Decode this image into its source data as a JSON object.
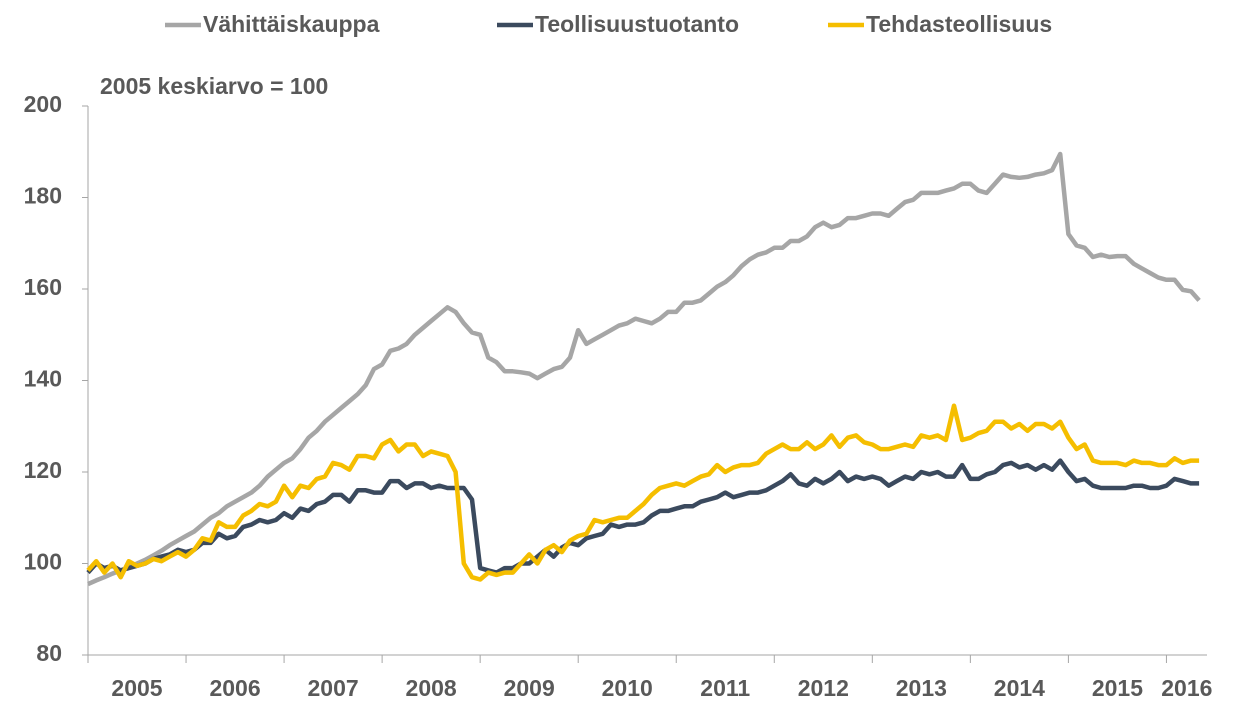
{
  "chart_data": {
    "type": "line",
    "subtitle": "2005 keskiarvo = 100",
    "categories": [
      "2005",
      null,
      null,
      null,
      null,
      null,
      null,
      null,
      null,
      null,
      null,
      null,
      "2006",
      null,
      null,
      null,
      null,
      null,
      null,
      null,
      null,
      null,
      null,
      null,
      "2007",
      null,
      null,
      null,
      null,
      null,
      null,
      null,
      null,
      null,
      null,
      null,
      "2008",
      null,
      null,
      null,
      null,
      null,
      null,
      null,
      null,
      null,
      null,
      null,
      "2009",
      null,
      null,
      null,
      null,
      null,
      null,
      null,
      null,
      null,
      null,
      null,
      "2010",
      null,
      null,
      null,
      null,
      null,
      null,
      null,
      null,
      null,
      null,
      null,
      "2011",
      null,
      null,
      null,
      null,
      null,
      null,
      null,
      null,
      null,
      null,
      null,
      "2012",
      null,
      null,
      null,
      null,
      null,
      null,
      null,
      null,
      null,
      null,
      null,
      "2013",
      null,
      null,
      null,
      null,
      null,
      null,
      null,
      null,
      null,
      null,
      null,
      "2014",
      null,
      null,
      null,
      null,
      null,
      null,
      null,
      null,
      null,
      null,
      null,
      "2015",
      null,
      null,
      null,
      null,
      null,
      null,
      null,
      null,
      null,
      null,
      null,
      "2016",
      null,
      null,
      null,
      null
    ],
    "series": [
      {
        "name": "Vähittäiskauppa",
        "color": "#a6a6a6",
        "values": [
          95.5,
          96.3,
          97,
          97.8,
          98.5,
          99.2,
          100,
          100.8,
          101.8,
          102.8,
          104,
          105,
          106,
          107,
          108.5,
          110,
          111,
          112.5,
          113.5,
          114.5,
          115.5,
          117,
          119,
          120.5,
          122,
          123,
          125,
          127.5,
          129,
          131,
          132.5,
          134,
          135.5,
          137,
          139,
          142.5,
          143.5,
          146.5,
          147,
          148,
          150,
          151.5,
          153,
          154.5,
          156,
          155,
          152.5,
          150.5,
          150,
          145,
          144,
          142,
          142,
          141.8,
          141.5,
          140.5,
          141.5,
          142.5,
          143,
          145,
          151,
          148,
          149,
          150,
          151,
          152,
          152.5,
          153.5,
          153,
          152.5,
          153.5,
          155,
          155,
          157,
          157,
          157.5,
          159,
          160.5,
          161.5,
          163,
          165,
          166.5,
          167.5,
          168,
          169,
          169,
          170.5,
          170.5,
          171.5,
          173.5,
          174.5,
          173.5,
          174,
          175.5,
          175.5,
          176,
          176.5,
          176.5,
          176,
          177.5,
          179,
          179.5,
          181,
          181,
          181,
          181.5,
          182,
          183,
          183,
          181.5,
          181,
          183,
          185,
          184.5,
          184.3,
          184.5,
          185,
          185.3,
          186,
          189.5,
          172,
          169.5,
          169,
          167,
          167.5,
          167,
          167.2,
          167.2,
          165.5,
          164.5,
          163.5,
          162.5,
          162,
          162,
          159.8,
          159.5,
          157.5
        ]
      },
      {
        "name": "Teollisuustuotanto",
        "color": "#3b4a5e",
        "values": [
          98,
          100,
          99,
          99.5,
          98.5,
          99,
          99.5,
          100,
          101,
          101.5,
          102,
          103,
          102.5,
          103,
          104.5,
          104.5,
          106.5,
          105.5,
          106,
          108,
          108.5,
          109.5,
          109,
          109.5,
          111,
          110,
          112,
          111.5,
          113,
          113.5,
          115,
          115,
          113.5,
          116,
          116,
          115.5,
          115.5,
          118,
          118,
          116.5,
          117.5,
          117.5,
          116.5,
          117,
          116.5,
          116.5,
          116.5,
          114,
          99,
          98.5,
          98,
          99,
          99,
          100,
          100,
          101.5,
          103,
          101.5,
          103.5,
          104.5,
          104,
          105.5,
          106,
          106.5,
          108.5,
          108,
          108.5,
          108.5,
          109,
          110.5,
          111.5,
          111.5,
          112,
          112.5,
          112.5,
          113.5,
          114,
          114.5,
          115.5,
          114.5,
          115,
          115.5,
          115.5,
          116,
          117,
          118,
          119.5,
          117.5,
          117,
          118.5,
          117.5,
          118.5,
          120,
          118,
          119,
          118.5,
          119,
          118.5,
          117,
          118,
          119,
          118.5,
          120,
          119.5,
          120,
          119,
          119,
          121.5,
          118.5,
          118.5,
          119.5,
          120,
          121.5,
          122,
          121,
          121.5,
          120.5,
          121.5,
          120.5,
          122.5,
          120,
          118,
          118.5,
          117,
          116.5,
          116.5,
          116.5,
          116.5,
          117,
          117,
          116.5,
          116.5,
          117,
          118.5,
          118,
          117.5,
          117.5
        ]
      },
      {
        "name": "Tehdasteollisuus",
        "color": "#f5be00",
        "values": [
          98.5,
          100.5,
          98,
          100,
          97,
          100.5,
          99.5,
          100,
          101,
          100.5,
          101.5,
          102.5,
          101.5,
          103,
          105.5,
          105,
          109,
          108,
          108,
          110.5,
          111.5,
          113,
          112.5,
          113.5,
          117,
          114.5,
          117,
          116.5,
          118.5,
          119,
          122,
          121.5,
          120.5,
          123.5,
          123.5,
          123,
          126,
          127,
          124.5,
          126,
          126,
          123.5,
          124.5,
          124,
          123.5,
          120,
          100,
          97,
          96.5,
          98,
          97.5,
          98,
          98,
          100,
          102,
          100,
          103,
          104,
          102.5,
          105,
          106,
          106.5,
          109.5,
          109,
          109.5,
          110,
          110,
          111.5,
          113,
          115,
          116.5,
          117,
          117.5,
          117,
          118,
          119,
          119.5,
          121.5,
          120,
          121,
          121.5,
          121.5,
          122,
          124,
          125,
          126,
          125,
          125,
          126.5,
          125,
          126,
          128,
          125.5,
          127.5,
          128,
          126.5,
          126,
          125,
          125,
          125.5,
          126,
          125.5,
          128,
          127.5,
          128,
          127,
          134.5,
          127,
          127.5,
          128.5,
          129,
          131,
          131,
          129.5,
          130.5,
          129,
          130.5,
          130.5,
          129.5,
          131,
          127.5,
          125,
          126,
          122.5,
          122,
          122,
          122,
          121.5,
          122.5,
          122,
          122,
          121.5,
          121.5,
          123,
          122,
          122.5,
          122.5
        ]
      }
    ],
    "ylim": [
      80,
      200
    ],
    "yticks": [
      80,
      100,
      120,
      140,
      160,
      180,
      200
    ],
    "grid": false,
    "legend": "top"
  }
}
